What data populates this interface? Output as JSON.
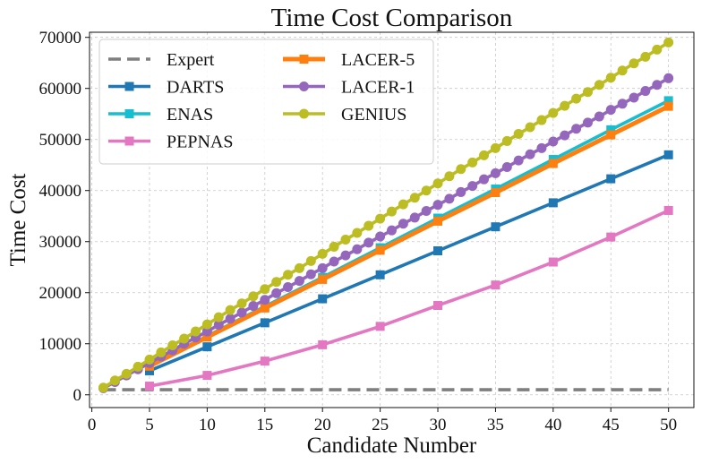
{
  "chart_data": {
    "type": "line",
    "title": "Time Cost Comparison",
    "xlabel": "Candidate Number",
    "ylabel": "Time Cost",
    "xlim": [
      -0.2,
      52.2
    ],
    "ylim": [
      -2500,
      71000
    ],
    "xticks": [
      0,
      5,
      10,
      15,
      20,
      25,
      30,
      35,
      40,
      45,
      50
    ],
    "yticks": [
      0,
      10000,
      20000,
      30000,
      40000,
      50000,
      60000,
      70000
    ],
    "grid": true,
    "legend_position": "top-left",
    "legend_ncol": 2,
    "series": [
      {
        "name": "Expert",
        "color": "#7f7f7f",
        "style": "dashed",
        "marker": "none",
        "x": [
          1,
          50
        ],
        "y": [
          1000,
          1000
        ]
      },
      {
        "name": "DARTS",
        "color": "#1f77b4",
        "style": "solid",
        "marker": "square",
        "x": [
          5,
          10,
          15,
          20,
          25,
          30,
          35,
          40,
          45,
          50
        ],
        "y": [
          4700,
          9400,
          14100,
          18800,
          23500,
          28200,
          32900,
          37600,
          42300,
          47000
        ]
      },
      {
        "name": "ENAS",
        "color": "#17becf",
        "style": "solid",
        "marker": "square",
        "x": [
          5,
          10,
          15,
          20,
          25,
          30,
          35,
          40,
          45,
          50
        ],
        "y": [
          5800,
          11500,
          17300,
          23000,
          28800,
          34600,
          40300,
          46100,
          51900,
          57600
        ]
      },
      {
        "name": "PEPNAS",
        "color": "#e377c2",
        "style": "solid",
        "marker": "square",
        "x": [
          5,
          10,
          15,
          20,
          25,
          30,
          35,
          40,
          45,
          50
        ],
        "y": [
          1700,
          3800,
          6600,
          9800,
          13400,
          17500,
          21500,
          26000,
          30900,
          36100
        ]
      },
      {
        "name": "LACER-5",
        "color": "#ff7f0e",
        "style": "solid-thick",
        "marker": "square",
        "x": [
          5,
          10,
          15,
          20,
          25,
          30,
          35,
          40,
          45,
          50
        ],
        "y": [
          5600,
          11300,
          17000,
          22600,
          28300,
          34000,
          39600,
          45300,
          50900,
          56500
        ]
      },
      {
        "name": "LACER-1",
        "color": "#9467bd",
        "style": "solid",
        "marker": "circle",
        "x": [
          1,
          2,
          3,
          4,
          5,
          6,
          7,
          8,
          9,
          10,
          11,
          12,
          13,
          14,
          15,
          16,
          17,
          18,
          19,
          20,
          21,
          22,
          23,
          24,
          25,
          26,
          27,
          28,
          29,
          30,
          31,
          32,
          33,
          34,
          35,
          36,
          37,
          38,
          39,
          40,
          41,
          42,
          43,
          44,
          45,
          46,
          47,
          48,
          49,
          50
        ],
        "y": [
          1300,
          2500,
          3800,
          5000,
          6200,
          7500,
          8700,
          10000,
          11200,
          12400,
          13700,
          14900,
          16100,
          17400,
          18600,
          19900,
          21100,
          22300,
          23600,
          24800,
          26100,
          27300,
          28500,
          29800,
          31000,
          32200,
          33500,
          34700,
          36000,
          37200,
          38400,
          39700,
          40900,
          42200,
          43400,
          44600,
          45900,
          47100,
          48300,
          49600,
          50800,
          52100,
          53300,
          54500,
          55800,
          57000,
          58200,
          59500,
          60700,
          62000
        ]
      },
      {
        "name": "GENIUS",
        "color": "#bcbd22",
        "style": "solid",
        "marker": "circle",
        "x": [
          1,
          2,
          3,
          4,
          5,
          6,
          7,
          8,
          9,
          10,
          11,
          12,
          13,
          14,
          15,
          16,
          17,
          18,
          19,
          20,
          21,
          22,
          23,
          24,
          25,
          26,
          27,
          28,
          29,
          30,
          31,
          32,
          33,
          34,
          35,
          36,
          37,
          38,
          39,
          40,
          41,
          42,
          43,
          44,
          45,
          46,
          47,
          48,
          49,
          50
        ],
        "y": [
          1400,
          2800,
          4100,
          5500,
          6900,
          8300,
          9700,
          11000,
          12400,
          13800,
          15200,
          16600,
          17900,
          19300,
          20700,
          22100,
          23500,
          24800,
          26200,
          27600,
          29000,
          30400,
          31700,
          33100,
          34500,
          35900,
          37300,
          38600,
          40000,
          41400,
          42800,
          44200,
          45500,
          46900,
          48300,
          49700,
          51100,
          52400,
          53800,
          55200,
          56600,
          58000,
          59300,
          60700,
          62100,
          63500,
          64900,
          66200,
          67600,
          69000
        ]
      }
    ]
  }
}
